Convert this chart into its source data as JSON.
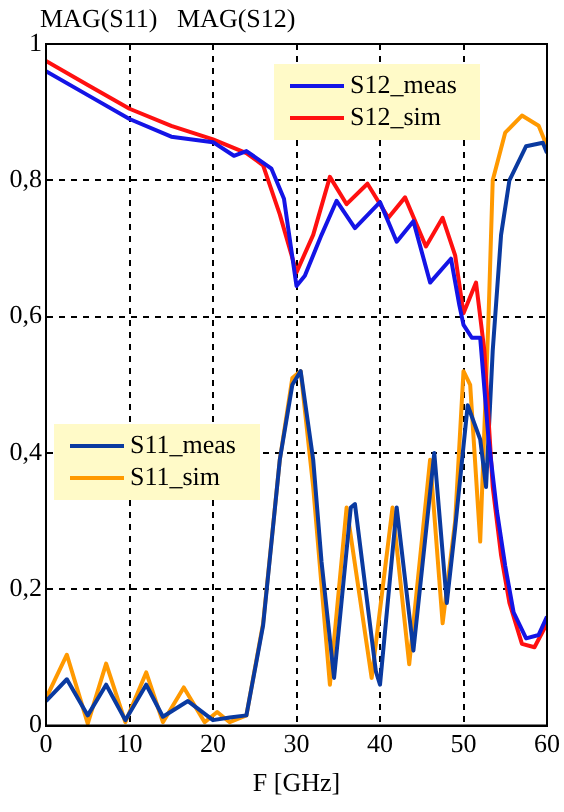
{
  "chart_data": {
    "type": "line",
    "title": "MAG(S11)   MAG(S12)",
    "xlabel": "F [GHz]",
    "xlim": [
      0,
      60
    ],
    "xticks": [
      0,
      10,
      20,
      30,
      40,
      50,
      60
    ],
    "ylim": [
      0,
      1
    ],
    "yticks": [
      {
        "value": 0,
        "label": "0"
      },
      {
        "value": 0.2,
        "label": "0,2"
      },
      {
        "value": 0.4,
        "label": "0,4"
      },
      {
        "value": 0.6,
        "label": "0,6"
      },
      {
        "value": 0.8,
        "label": "0,8"
      },
      {
        "value": 1,
        "label": "1"
      }
    ],
    "grid": true,
    "legend": "top",
    "line_style": "solid",
    "marker": "none",
    "series": [
      {
        "name": "S12_meas",
        "color": "#1414e6",
        "x": [
          0,
          5,
          10,
          15,
          20,
          22.5,
          24,
          27,
          28.5,
          30,
          31,
          33,
          34.8,
          37,
          40,
          42,
          44,
          46,
          48.5,
          49.5,
          50,
          51,
          52,
          53,
          54,
          55,
          56,
          57.5,
          59,
          60
        ],
        "values": [
          0.96,
          0.925,
          0.89,
          0.864,
          0.856,
          0.836,
          0.843,
          0.817,
          0.773,
          0.645,
          0.66,
          0.72,
          0.77,
          0.73,
          0.768,
          0.71,
          0.74,
          0.65,
          0.685,
          0.617,
          0.588,
          0.569,
          0.569,
          0.42,
          0.315,
          0.234,
          0.166,
          0.128,
          0.133,
          0.16
        ]
      },
      {
        "name": "S12_sim",
        "color": "#ff1010",
        "x": [
          0,
          5,
          10,
          15,
          20,
          24,
          26,
          28,
          30,
          32,
          34,
          36,
          38.5,
          41,
          43,
          45.5,
          47.5,
          49,
          50,
          51.5,
          52.5,
          53.5,
          54.5,
          55.5,
          57,
          58.5,
          60
        ],
        "values": [
          0.975,
          0.94,
          0.905,
          0.88,
          0.86,
          0.84,
          0.822,
          0.75,
          0.665,
          0.72,
          0.805,
          0.765,
          0.795,
          0.745,
          0.775,
          0.703,
          0.745,
          0.69,
          0.605,
          0.65,
          0.55,
          0.35,
          0.25,
          0.18,
          0.12,
          0.115,
          0.15
        ]
      },
      {
        "name": "S11_meas",
        "color": "#0a3aa0",
        "x": [
          0,
          2.5,
          5,
          7.2,
          9.5,
          12,
          14,
          17,
          20,
          22,
          24,
          26,
          28,
          29.5,
          30.5,
          32,
          33,
          34.5,
          36.5,
          37,
          39.5,
          40,
          42,
          44,
          46.5,
          48,
          49,
          50.5,
          52,
          52.7,
          53.5,
          54.5,
          55.5,
          57.5,
          59.5,
          60
        ],
        "values": [
          0.036,
          0.068,
          0.015,
          0.06,
          0.008,
          0.06,
          0.013,
          0.036,
          0.008,
          0.012,
          0.015,
          0.147,
          0.39,
          0.5,
          0.52,
          0.39,
          0.24,
          0.07,
          0.32,
          0.325,
          0.08,
          0.06,
          0.32,
          0.11,
          0.4,
          0.18,
          0.29,
          0.47,
          0.42,
          0.35,
          0.55,
          0.72,
          0.8,
          0.85,
          0.855,
          0.84
        ]
      },
      {
        "name": "S11_sim",
        "color": "#ff9900",
        "x": [
          0,
          2.5,
          5,
          7.2,
          9.5,
          12,
          14,
          16.5,
          19,
          20.5,
          22,
          24,
          26,
          28,
          29.5,
          30.5,
          32,
          34,
          36,
          39,
          41.5,
          43.5,
          46,
          47.5,
          49,
          50,
          50.8,
          52,
          53,
          53.5,
          55,
          57,
          59,
          60
        ],
        "values": [
          0.04,
          0.104,
          0.003,
          0.091,
          0.005,
          0.078,
          0.005,
          0.056,
          0.005,
          0.02,
          0.005,
          0.015,
          0.15,
          0.39,
          0.51,
          0.52,
          0.35,
          0.06,
          0.32,
          0.07,
          0.32,
          0.09,
          0.39,
          0.15,
          0.3,
          0.52,
          0.5,
          0.27,
          0.6,
          0.8,
          0.87,
          0.895,
          0.88,
          0.85
        ]
      }
    ]
  }
}
